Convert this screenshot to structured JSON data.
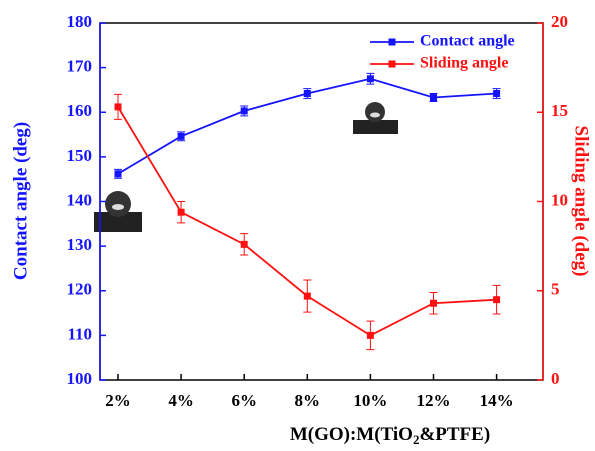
{
  "chart_data": {
    "type": "line",
    "categories": [
      "2%",
      "4%",
      "6%",
      "8%",
      "10%",
      "12%",
      "14%"
    ],
    "series": [
      {
        "name": "Contact angle",
        "color": "#1414ff",
        "axis": "y",
        "values": [
          146.2,
          154.6,
          160.3,
          164.2,
          167.5,
          163.3,
          164.2
        ],
        "errors": [
          1.0,
          1.0,
          1.1,
          1.1,
          1.2,
          0.9,
          1.1
        ]
      },
      {
        "name": "Sliding angle",
        "color": "#ff1010",
        "axis": "y2",
        "values": [
          15.3,
          9.4,
          7.6,
          4.7,
          2.5,
          4.3,
          4.5
        ],
        "errors": [
          0.7,
          0.6,
          0.6,
          0.9,
          0.8,
          0.6,
          0.8
        ]
      }
    ],
    "x_label": {
      "text": "M(GO):M(TiO",
      "sub": "2",
      "after": "&PTFE)"
    },
    "y_label": "Contact angle (deg)",
    "y2_label": "Sliding angle (deg)",
    "ylim": [
      100,
      180
    ],
    "yticks": [
      100,
      110,
      120,
      130,
      140,
      150,
      160,
      170,
      180
    ],
    "y2lim": [
      0,
      20
    ],
    "y2ticks": [
      0,
      5,
      10,
      15,
      20
    ],
    "legend": "upper right",
    "grid": false
  }
}
